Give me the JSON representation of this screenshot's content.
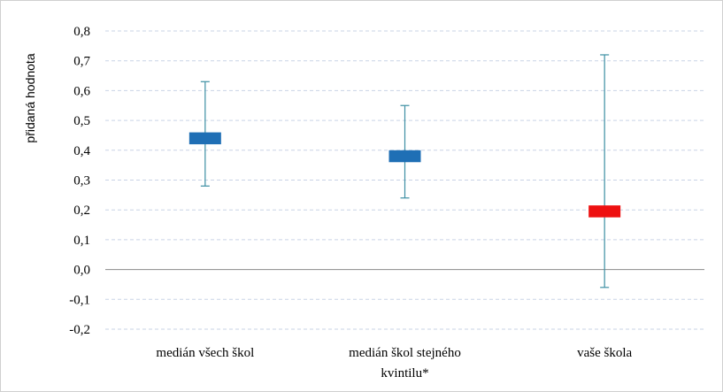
{
  "chart_data": {
    "type": "box",
    "title": "",
    "xlabel": "",
    "ylabel": "přidaná hodnota",
    "ylim": [
      -0.2,
      0.8
    ],
    "yticks": [
      -0.2,
      -0.1,
      0.0,
      0.1,
      0.2,
      0.3,
      0.4,
      0.5,
      0.6,
      0.7,
      0.8
    ],
    "yticks_labels": [
      "-0,2",
      "-0,1",
      "0,0",
      "0,1",
      "0,2",
      "0,3",
      "0,4",
      "0,5",
      "0,6",
      "0,7",
      "0,8"
    ],
    "grid": true,
    "categories": [
      {
        "label_lines": [
          "medián všech škol"
        ],
        "low": 0.28,
        "high": 0.63,
        "box_low": 0.42,
        "box_high": 0.46,
        "color": "#1f6fb5"
      },
      {
        "label_lines": [
          "medián škol stejného",
          "kvintilu*"
        ],
        "low": 0.24,
        "high": 0.55,
        "box_low": 0.36,
        "box_high": 0.4,
        "color": "#1f6fb5"
      },
      {
        "label_lines": [
          "vaše škola"
        ],
        "low": -0.06,
        "high": 0.72,
        "box_low": 0.175,
        "box_high": 0.215,
        "color": "#ee1111"
      }
    ],
    "whisker_color": "#3d8fa3",
    "gridline_color": "#c9d3e6",
    "zero_line_color": "#8a8a8a"
  }
}
